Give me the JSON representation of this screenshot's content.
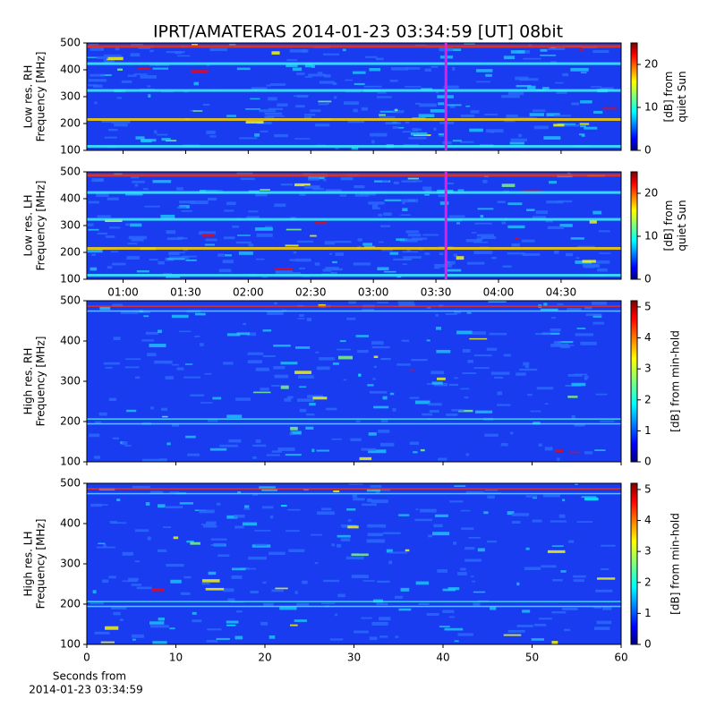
{
  "title": "IPRT/AMATERAS 2014-01-23 03:34:59 [UT]   08bit",
  "chart_data": [
    {
      "type": "spectrogram",
      "ylabel": [
        "Low res. RH",
        "Frequency [MHz]"
      ],
      "xlim": [
        0.71,
        4.98
      ],
      "xticks": [
        1,
        1.5,
        2,
        2.5,
        3,
        3.5,
        4,
        4.5
      ],
      "xticklabels": false,
      "ylim": [
        100,
        500
      ],
      "yticks": [
        100,
        200,
        300,
        400,
        500
      ],
      "marker": {
        "x": 3.58,
        "color": "#e020e0"
      },
      "colorbar": {
        "label": [
          "[dB] from",
          "quiet Sun"
        ],
        "lim": [
          0,
          25
        ],
        "ticks": [
          0,
          10,
          20
        ]
      }
    },
    {
      "type": "spectrogram",
      "ylabel": [
        "Low res. LH",
        "Frequency [MHz]"
      ],
      "xlim": [
        0.71,
        4.98
      ],
      "xticks": [
        {
          "value": 1,
          "label": "01:00"
        },
        {
          "value": 1.5,
          "label": "01:30"
        },
        {
          "value": 2,
          "label": "02:00"
        },
        {
          "value": 2.5,
          "label": "02:30"
        },
        {
          "value": 3,
          "label": "03:00"
        },
        {
          "value": 3.5,
          "label": "03:30"
        },
        {
          "value": 4,
          "label": "04:00"
        },
        {
          "value": 4.5,
          "label": "04:30"
        }
      ],
      "ylim": [
        100,
        500
      ],
      "yticks": [
        100,
        200,
        300,
        400,
        500
      ],
      "marker": {
        "x": 3.58,
        "color": "#e020e0"
      },
      "colorbar": {
        "label": [
          "[dB] from",
          "quiet Sun"
        ],
        "lim": [
          0,
          25
        ],
        "ticks": [
          0,
          10,
          20
        ]
      }
    },
    {
      "type": "spectrogram",
      "ylabel": [
        "High res. RH",
        "Frequency [MHz]"
      ],
      "xlim": [
        0,
        60
      ],
      "xticks": [
        0,
        10,
        20,
        30,
        40,
        50,
        60
      ],
      "xticklabels": false,
      "ylim": [
        100,
        500
      ],
      "yticks": [
        100,
        200,
        300,
        400,
        500
      ],
      "colorbar": {
        "label": [
          "[dB] from min-hold"
        ],
        "lim": [
          0,
          5.2
        ],
        "ticks": [
          0,
          1,
          2,
          3,
          4,
          5
        ]
      }
    },
    {
      "type": "spectrogram",
      "ylabel": [
        "High res. LH",
        "Frequency [MHz]"
      ],
      "xlim": [
        0,
        60
      ],
      "xticks": [
        0,
        10,
        20,
        30,
        40,
        50,
        60
      ],
      "xlabel": [
        "Seconds from",
        "2014-01-23 03:34:59"
      ],
      "ylim": [
        100,
        500
      ],
      "yticks": [
        100,
        200,
        300,
        400,
        500
      ],
      "colorbar": {
        "label": [
          "[dB] from min-hold"
        ],
        "lim": [
          0,
          5.2
        ],
        "ticks": [
          0,
          1,
          2,
          3,
          4,
          5
        ]
      }
    }
  ]
}
